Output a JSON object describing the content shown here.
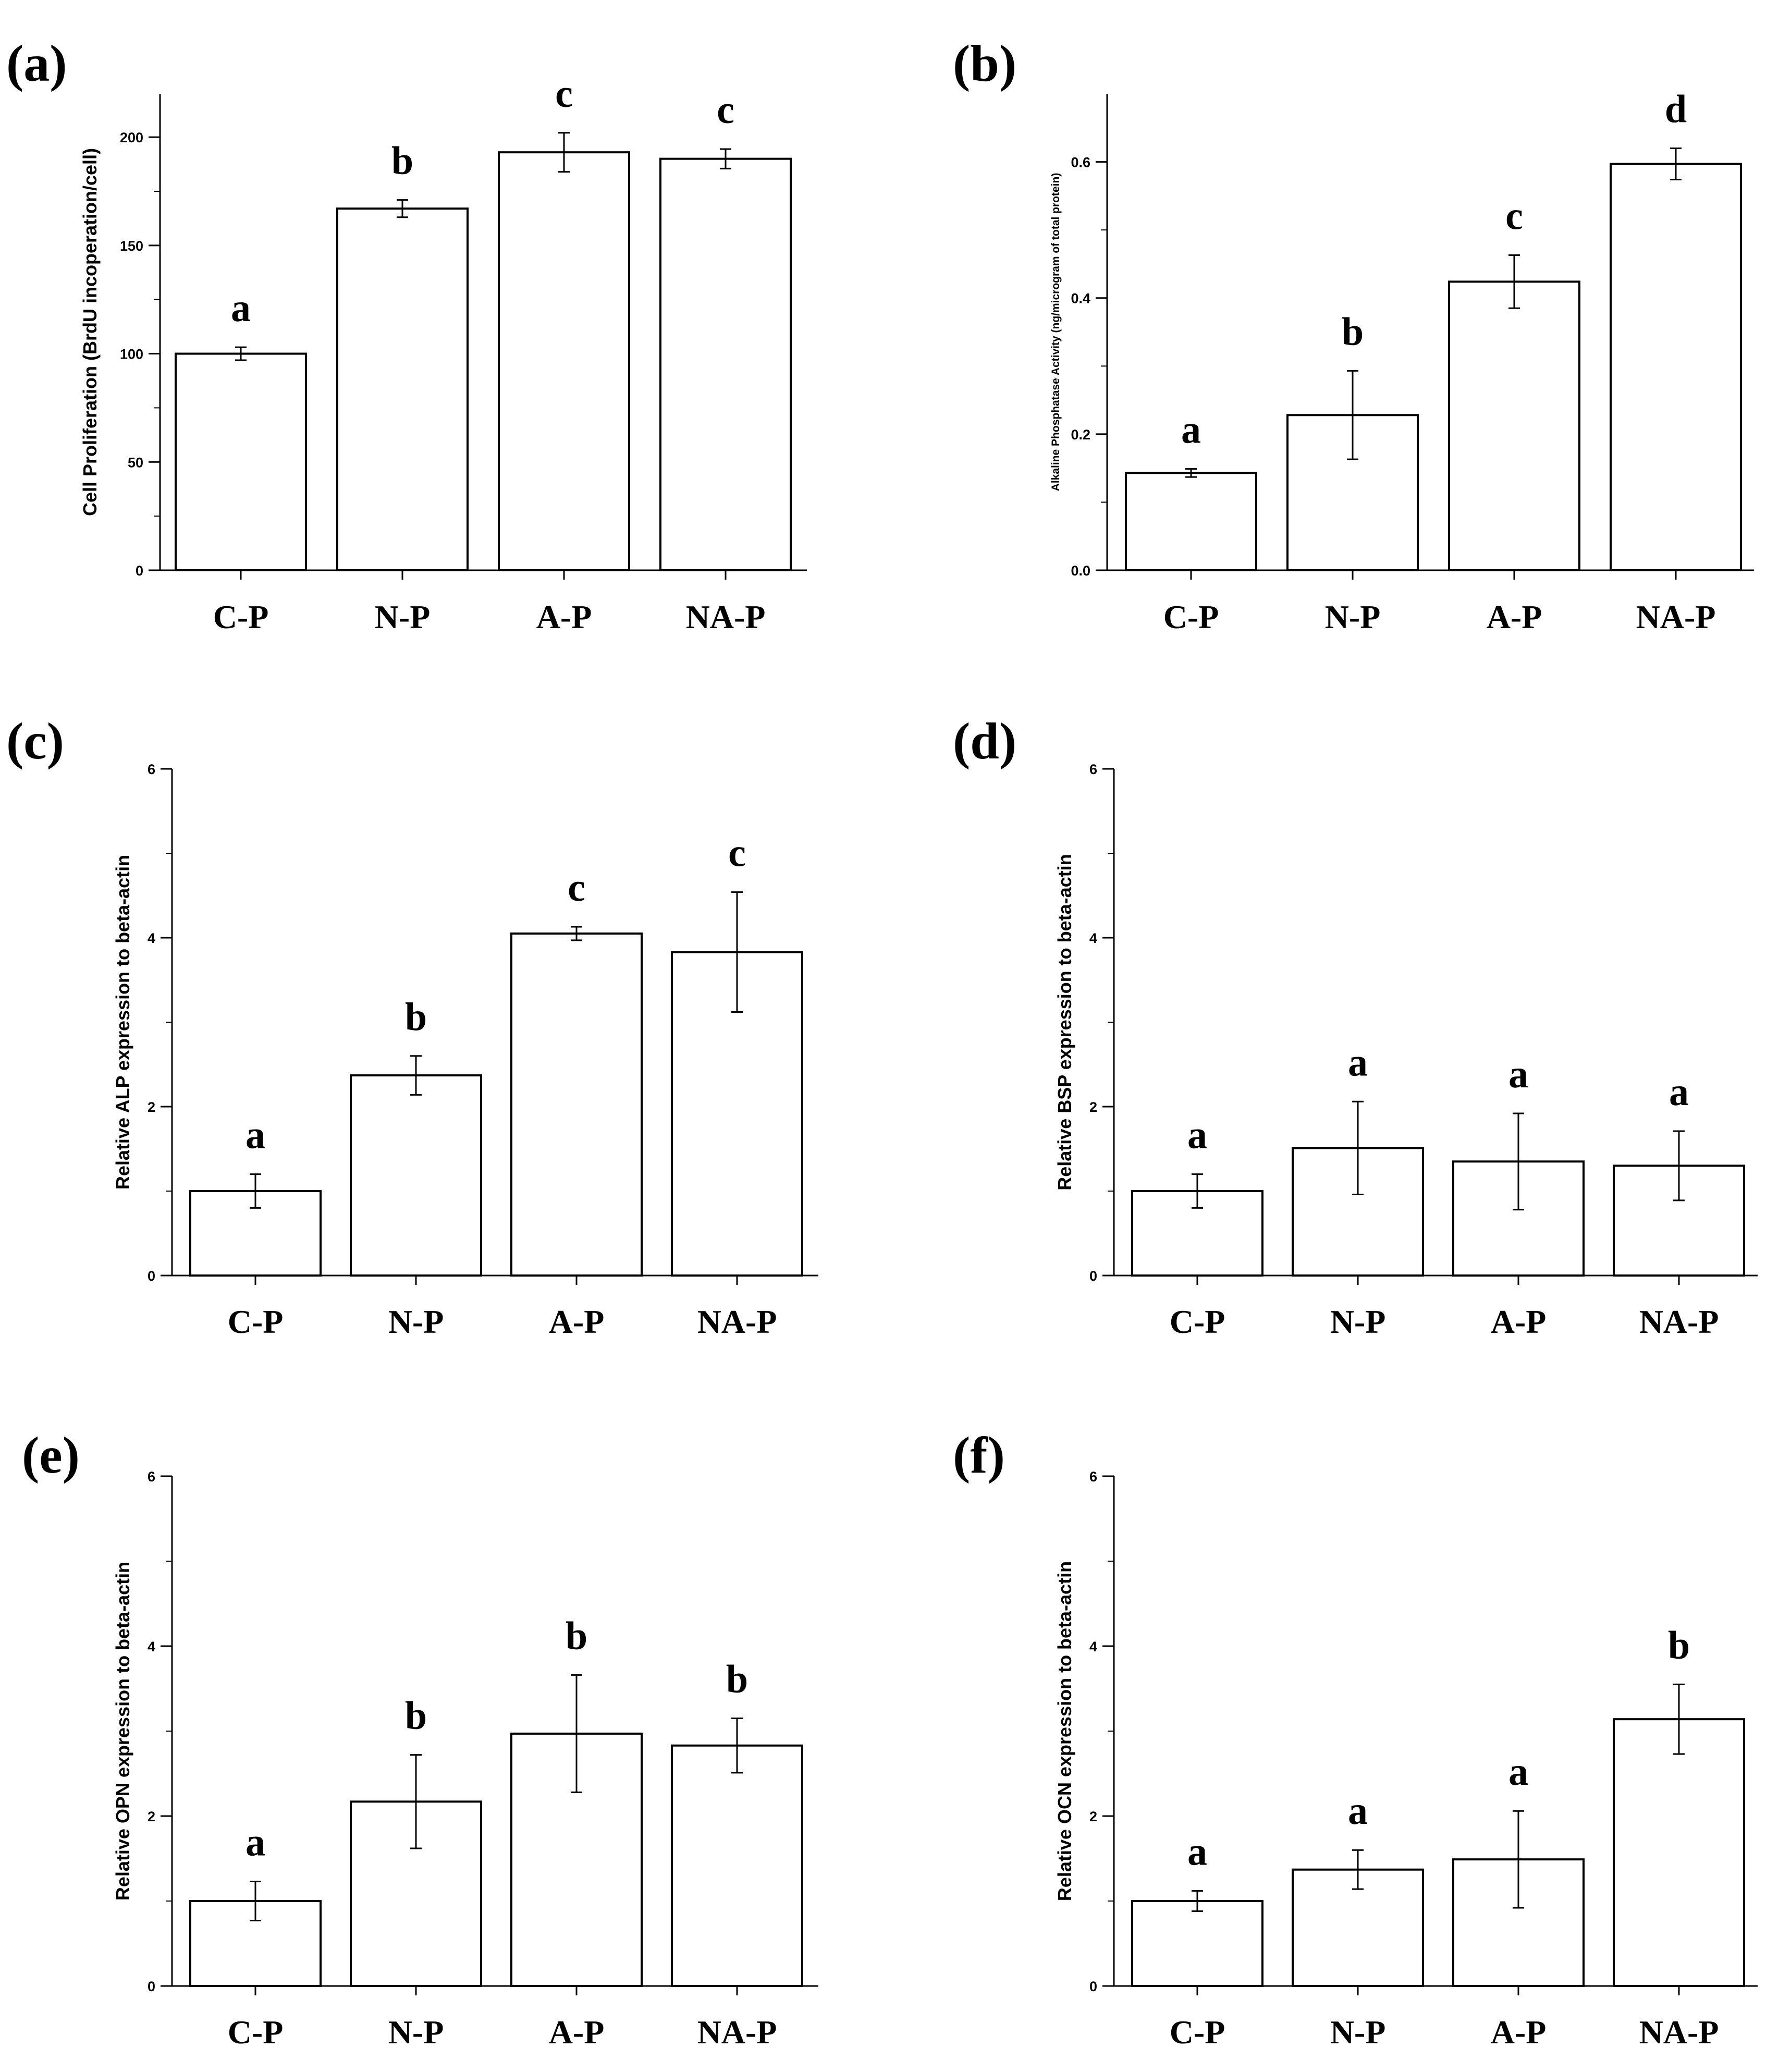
{
  "figure": {
    "panels": [
      "(a)",
      "(b)",
      "(c)",
      "(d)",
      "(e)",
      "(f)"
    ]
  },
  "chart_data": [
    {
      "id": "a",
      "type": "bar",
      "panel_label": "(a)",
      "title": "",
      "xlabel": "",
      "ylabel": "Cell Proliferation (BrdU incoperation/cell)",
      "categories": [
        "C-P",
        "N-P",
        "A-P",
        "NA-P"
      ],
      "values": [
        100,
        167,
        193,
        190
      ],
      "errors": [
        3,
        4,
        9,
        4.5
      ],
      "significance": [
        "a",
        "b",
        "c",
        "c"
      ],
      "ylim": [
        0,
        220
      ],
      "yticks": [
        0,
        50,
        100,
        150,
        200
      ],
      "yticklabels": [
        "0",
        "50",
        "100",
        "150",
        "200"
      ]
    },
    {
      "id": "b",
      "type": "bar",
      "panel_label": "(b)",
      "title": "",
      "xlabel": "",
      "ylabel": "Alkaline Phosphatase Activity (ng/microgram of total protein)",
      "categories": [
        "C-P",
        "N-P",
        "A-P",
        "NA-P"
      ],
      "values": [
        0.143,
        0.228,
        0.424,
        0.597
      ],
      "errors": [
        0.006,
        0.065,
        0.039,
        0.023
      ],
      "significance": [
        "a",
        "b",
        "c",
        "d"
      ],
      "ylim": [
        0,
        0.7
      ],
      "yticks": [
        0,
        0.2,
        0.4,
        0.6
      ],
      "yticklabels": [
        "0.0",
        "0.2",
        "0.4",
        "0.6"
      ]
    },
    {
      "id": "c",
      "type": "bar",
      "panel_label": "(c)",
      "title": "",
      "xlabel": "",
      "ylabel": "Relative ALP expression to beta-actin",
      "categories": [
        "C-P",
        "N-P",
        "A-P",
        "NA-P"
      ],
      "values": [
        1.0,
        2.37,
        4.05,
        3.83
      ],
      "errors": [
        0.2,
        0.23,
        0.08,
        0.71
      ],
      "significance": [
        "a",
        "b",
        "c",
        "c"
      ],
      "ylim": [
        0,
        6
      ],
      "yticks": [
        0,
        2,
        4,
        6
      ],
      "yticklabels": [
        "0",
        "2",
        "4",
        "6"
      ]
    },
    {
      "id": "d",
      "type": "bar",
      "panel_label": "(d)",
      "title": "",
      "xlabel": "",
      "ylabel": "Relative BSP expression to beta-actin",
      "categories": [
        "C-P",
        "N-P",
        "A-P",
        "NA-P"
      ],
      "values": [
        1.0,
        1.51,
        1.35,
        1.3
      ],
      "errors": [
        0.2,
        0.55,
        0.57,
        0.41
      ],
      "significance": [
        "a",
        "a",
        "a",
        "a"
      ],
      "ylim": [
        0,
        6
      ],
      "yticks": [
        0,
        2,
        4,
        6
      ],
      "yticklabels": [
        "0",
        "2",
        "4",
        "6"
      ]
    },
    {
      "id": "e",
      "type": "bar",
      "panel_label": "(e)",
      "title": "",
      "xlabel": "",
      "ylabel": "Relative OPN expression to beta-actin",
      "categories": [
        "C-P",
        "N-P",
        "A-P",
        "NA-P"
      ],
      "values": [
        1.0,
        2.17,
        2.97,
        2.83
      ],
      "errors": [
        0.23,
        0.55,
        0.69,
        0.32
      ],
      "significance": [
        "a",
        "b",
        "b",
        "b"
      ],
      "ylim": [
        0,
        6
      ],
      "yticks": [
        0,
        2,
        4,
        6
      ],
      "yticklabels": [
        "0",
        "2",
        "4",
        "6"
      ]
    },
    {
      "id": "f",
      "type": "bar",
      "panel_label": "(f)",
      "title": "",
      "xlabel": "",
      "ylabel": "Relative OCN expression to beta-actin",
      "categories": [
        "C-P",
        "N-P",
        "A-P",
        "NA-P"
      ],
      "values": [
        1.0,
        1.37,
        1.49,
        3.14
      ],
      "errors": [
        0.12,
        0.23,
        0.57,
        0.41
      ],
      "significance": [
        "a",
        "a",
        "a",
        "b"
      ],
      "ylim": [
        0,
        6
      ],
      "yticks": [
        0,
        2,
        4,
        6
      ],
      "yticklabels": [
        "0",
        "2",
        "4",
        "6"
      ]
    }
  ]
}
